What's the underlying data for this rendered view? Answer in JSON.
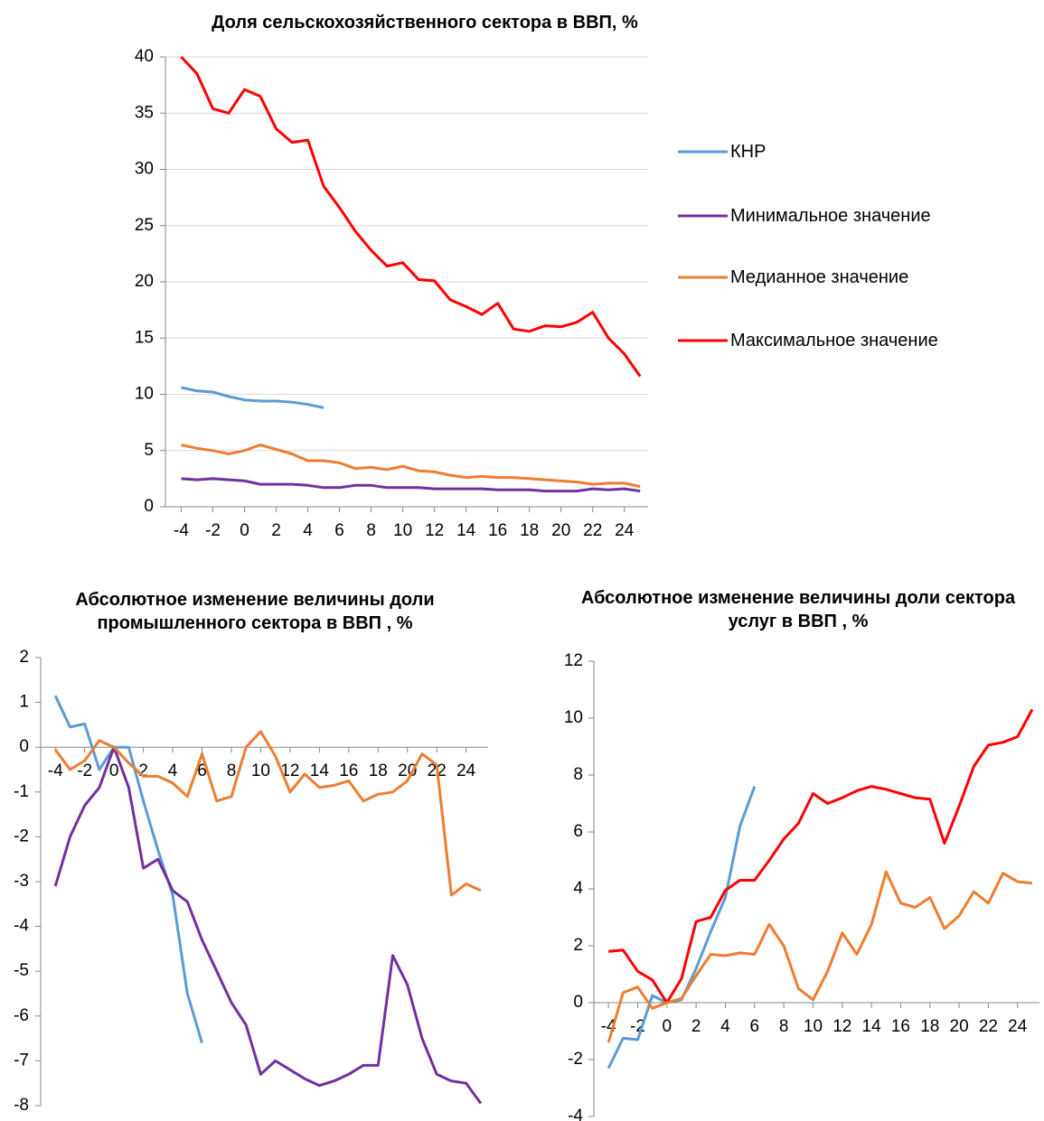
{
  "chart_data": [
    {
      "type": "line",
      "title": "Доля сельскохозяйственного сектора в  ВВП, %",
      "x": [
        -4,
        -3,
        -2,
        -1,
        0,
        1,
        2,
        3,
        4,
        5,
        6,
        7,
        8,
        9,
        10,
        11,
        12,
        13,
        14,
        15,
        16,
        17,
        18,
        19,
        20,
        21,
        22,
        23,
        24,
        25
      ],
      "series": [
        {
          "name": "КНР",
          "color": "#5b9bd5",
          "values": [
            10.6,
            10.3,
            10.2,
            9.8,
            9.5,
            9.4,
            9.4,
            9.3,
            9.1,
            8.8,
            null,
            null,
            null,
            null,
            null,
            null,
            null,
            null,
            null,
            null,
            null,
            null,
            null,
            null,
            null,
            null,
            null,
            null,
            null,
            null
          ]
        },
        {
          "name": "Минимальное значение",
          "color": "#7030a0",
          "values": [
            2.5,
            2.4,
            2.5,
            2.4,
            2.3,
            2.0,
            2.0,
            2.0,
            1.9,
            1.7,
            1.7,
            1.9,
            1.9,
            1.7,
            1.7,
            1.7,
            1.6,
            1.6,
            1.6,
            1.6,
            1.5,
            1.5,
            1.5,
            1.4,
            1.4,
            1.4,
            1.6,
            1.5,
            1.6,
            1.4
          ]
        },
        {
          "name": "Медианное значение",
          "color": "#ed7d31",
          "values": [
            5.5,
            5.2,
            5.0,
            4.7,
            5.0,
            5.5,
            5.1,
            4.7,
            4.1,
            4.1,
            3.9,
            3.4,
            3.5,
            3.3,
            3.6,
            3.2,
            3.1,
            2.8,
            2.6,
            2.7,
            2.6,
            2.6,
            2.5,
            2.4,
            2.3,
            2.2,
            2.0,
            2.1,
            2.1,
            1.8
          ]
        },
        {
          "name": "Максимальное значение",
          "color": "#ff0000",
          "values": [
            40,
            38.5,
            35.4,
            35,
            37.1,
            36.5,
            33.6,
            32.4,
            32.6,
            28.5,
            26.6,
            24.5,
            22.8,
            21.4,
            21.7,
            20.2,
            20.1,
            18.4,
            17.8,
            17.1,
            18.1,
            15.8,
            15.6,
            16.1,
            16,
            16.4,
            17.3,
            15,
            13.6,
            11.6
          ]
        }
      ],
      "xlim": [
        -5,
        25.5
      ],
      "xticks": [
        -4,
        -2,
        0,
        2,
        4,
        6,
        8,
        10,
        12,
        14,
        16,
        18,
        20,
        22,
        24
      ],
      "ylim": [
        0,
        40
      ],
      "yticks": [
        0,
        5,
        10,
        15,
        20,
        25,
        30,
        35,
        40
      ],
      "grid": true,
      "legend": "right"
    },
    {
      "type": "line",
      "title": "Абсолютное изменение величины доли промышленного сектора в ВВП , %",
      "x": [
        -4,
        -3,
        -2,
        -1,
        0,
        1,
        2,
        3,
        4,
        5,
        6,
        7,
        8,
        9,
        10,
        11,
        12,
        13,
        14,
        15,
        16,
        17,
        18,
        19,
        20,
        21,
        22,
        23,
        24,
        25
      ],
      "series": [
        {
          "color": "#5b9bd5",
          "values": [
            1.15,
            0.45,
            0.52,
            -0.5,
            0,
            0,
            -1.2,
            -2.3,
            -3.3,
            -5.5,
            -6.6,
            null,
            null,
            null,
            null,
            null,
            null,
            null,
            null,
            null,
            null,
            null,
            null,
            null,
            null,
            null,
            null,
            null,
            null,
            null
          ]
        },
        {
          "color": "#7030a0",
          "values": [
            -3.1,
            -2.0,
            -1.3,
            -0.9,
            0,
            -0.9,
            -2.7,
            -2.5,
            -3.2,
            -3.45,
            -4.3,
            -5.0,
            -5.7,
            -6.2,
            -7.3,
            -7.0,
            -7.2,
            -7.4,
            -7.55,
            -7.45,
            -7.3,
            -7.1,
            -7.1,
            -4.65,
            -5.3,
            -6.5,
            -7.3,
            -7.45,
            -7.5,
            -7.95
          ]
        },
        {
          "color": "#ed7d31",
          "values": [
            -0.05,
            -0.5,
            -0.3,
            0.15,
            0,
            -0.35,
            -0.65,
            -0.65,
            -0.8,
            -1.1,
            -0.15,
            -1.2,
            -1.1,
            0,
            0.35,
            -0.2,
            -1.0,
            -0.6,
            -0.9,
            -0.85,
            -0.75,
            -1.2,
            -1.05,
            -1.0,
            -0.75,
            -0.15,
            -0.4,
            -3.3,
            -3.05,
            -3.2
          ]
        }
      ],
      "xlim": [
        -5,
        25.5
      ],
      "xticks": [
        -4,
        -2,
        0,
        2,
        4,
        6,
        8,
        10,
        12,
        14,
        16,
        18,
        20,
        22,
        24
      ],
      "ylim": [
        -8,
        2
      ],
      "yticks": [
        -8,
        -7,
        -6,
        -5,
        -4,
        -3,
        -2,
        -1,
        0,
        1,
        2
      ],
      "grid": false
    },
    {
      "type": "line",
      "title": "Абсолютное изменение величины доли сектора услуг в ВВП , %",
      "x": [
        -4,
        -3,
        -2,
        -1,
        0,
        1,
        2,
        3,
        4,
        5,
        6,
        7,
        8,
        9,
        10,
        11,
        12,
        13,
        14,
        15,
        16,
        17,
        18,
        19,
        20,
        21,
        22,
        23,
        24,
        25
      ],
      "series": [
        {
          "color": "#5b9bd5",
          "values": [
            -2.3,
            -1.25,
            -1.3,
            0.25,
            0,
            0.1,
            1.2,
            2.5,
            3.7,
            6.2,
            7.6,
            null,
            null,
            null,
            null,
            null,
            null,
            null,
            null,
            null,
            null,
            null,
            null,
            null,
            null,
            null,
            null,
            null,
            null,
            null
          ]
        },
        {
          "color": "#ff0000",
          "values": [
            1.8,
            1.85,
            1.1,
            0.8,
            0,
            0.85,
            2.85,
            3.0,
            3.95,
            4.3,
            4.3,
            5.0,
            5.75,
            6.3,
            7.35,
            7.0,
            7.2,
            7.45,
            7.6,
            7.5,
            7.35,
            7.2,
            7.15,
            5.6,
            6.9,
            8.3,
            9.05,
            9.15,
            9.35,
            10.3
          ]
        },
        {
          "color": "#ed7d31",
          "values": [
            -1.4,
            0.35,
            0.55,
            -0.2,
            0,
            0.15,
            0.95,
            1.7,
            1.65,
            1.75,
            1.7,
            2.75,
            2.0,
            0.5,
            0.1,
            1.1,
            2.45,
            1.7,
            2.75,
            4.6,
            3.5,
            3.35,
            3.7,
            2.6,
            3.05,
            3.9,
            3.5,
            4.55,
            4.25,
            4.2
          ]
        }
      ],
      "xlim": [
        -5,
        25.5
      ],
      "xticks": [
        -4,
        -2,
        0,
        2,
        4,
        6,
        8,
        10,
        12,
        14,
        16,
        18,
        20,
        22,
        24
      ],
      "ylim": [
        -4,
        12
      ],
      "yticks": [
        -4,
        -2,
        0,
        2,
        4,
        6,
        8,
        10,
        12
      ],
      "grid": false
    }
  ]
}
